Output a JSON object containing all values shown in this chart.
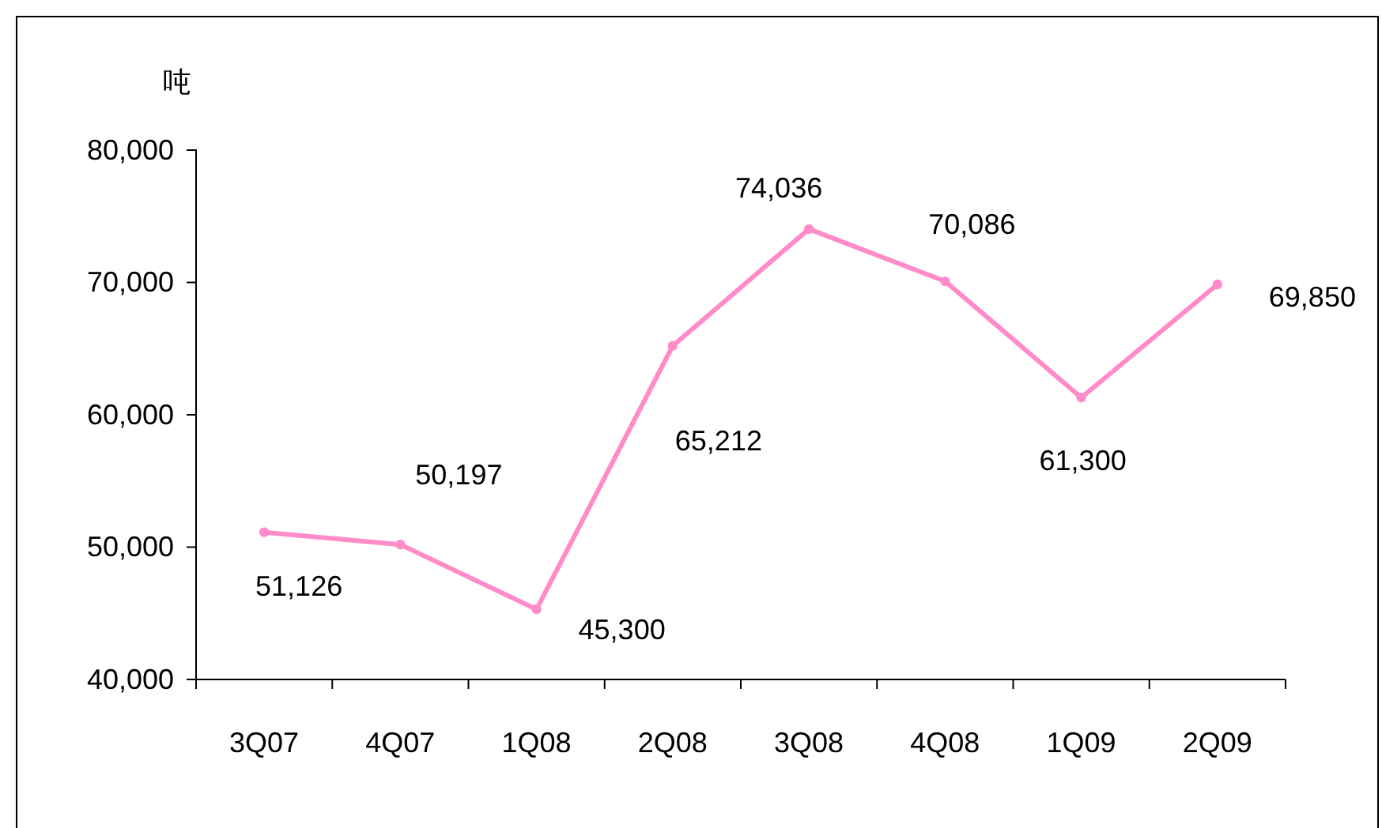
{
  "chart_data": {
    "type": "line",
    "ylabel": "吨",
    "categories": [
      "3Q07",
      "4Q07",
      "1Q08",
      "2Q08",
      "3Q08",
      "4Q08",
      "1Q09",
      "2Q09"
    ],
    "series": [
      {
        "color": "#ff8cc8",
        "values": [
          51126,
          50197,
          45300,
          65212,
          74036,
          70086,
          61300,
          69850
        ],
        "value_labels": [
          "51,126",
          "50,197",
          "45,300",
          "65,212",
          "74,036",
          "70,086",
          "61,300",
          "69,850"
        ]
      }
    ],
    "ylim": [
      40000,
      80000
    ],
    "yticks": [
      {
        "value": 40000,
        "label": "40,000"
      },
      {
        "value": 50000,
        "label": "50,000"
      },
      {
        "value": 60000,
        "label": "60,000"
      },
      {
        "value": 70000,
        "label": "70,000"
      },
      {
        "value": 80000,
        "label": "80,000"
      }
    ],
    "grid": false,
    "marker": "circle",
    "line_style": "solid"
  }
}
